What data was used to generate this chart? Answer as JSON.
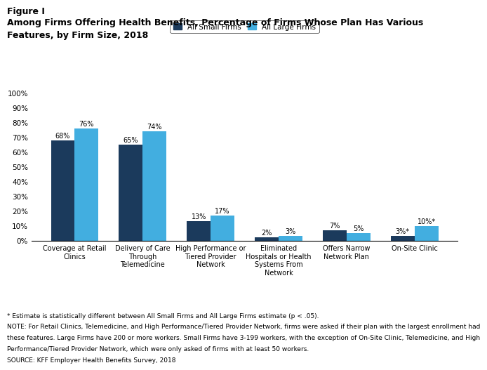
{
  "figure_label": "Figure I",
  "title_line1": "Among Firms Offering Health Benefits, Percentage of Firms Whose Plan Has Various",
  "title_line2": "Features, by Firm Size, 2018",
  "categories": [
    "Coverage at Retail\nClinics",
    "Delivery of Care\nThrough\nTelemedicine",
    "High Performance or\nTiered Provider\nNetwork",
    "Eliminated\nHospitals or Health\nSystems From\nNetwork",
    "Offers Narrow\nNetwork Plan",
    "On-Site Clinic"
  ],
  "small_firms": [
    68,
    65,
    13,
    2,
    7,
    3
  ],
  "large_firms": [
    76,
    74,
    17,
    3,
    5,
    10
  ],
  "small_labels": [
    "68%",
    "65%",
    "13%",
    "2%",
    "7%",
    "3%*"
  ],
  "large_labels": [
    "76%",
    "74%",
    "17%",
    "3%",
    "5%",
    "10%*"
  ],
  "small_color": "#1b3a5c",
  "large_color": "#42aee0",
  "ylim": [
    0,
    100
  ],
  "yticks": [
    0,
    10,
    20,
    30,
    40,
    50,
    60,
    70,
    80,
    90,
    100
  ],
  "ytick_labels": [
    "0%",
    "10%",
    "20%",
    "30%",
    "40%",
    "50%",
    "60%",
    "70%",
    "80%",
    "90%",
    "100%"
  ],
  "legend_small": "All Small Firms",
  "legend_large": "All Large Firms",
  "footnote1": "* Estimate is statistically different between All Small Firms and All Large Firms estimate (p < .05).",
  "footnote2": "NOTE: For Retail Clinics, Telemedicine, and High Performance/Tiered Provider Network, firms were asked if their plan with the largest enrollment had",
  "footnote3": "these features. Large Firms have 200 or more workers. Small Firms have 3-199 workers, with the exception of On-Site Clinic, Telemedicine, and High",
  "footnote4": "Performance/Tiered Provider Network, which were only asked of firms with at least 50 workers.",
  "footnote5": "SOURCE: KFF Employer Health Benefits Survey, 2018"
}
